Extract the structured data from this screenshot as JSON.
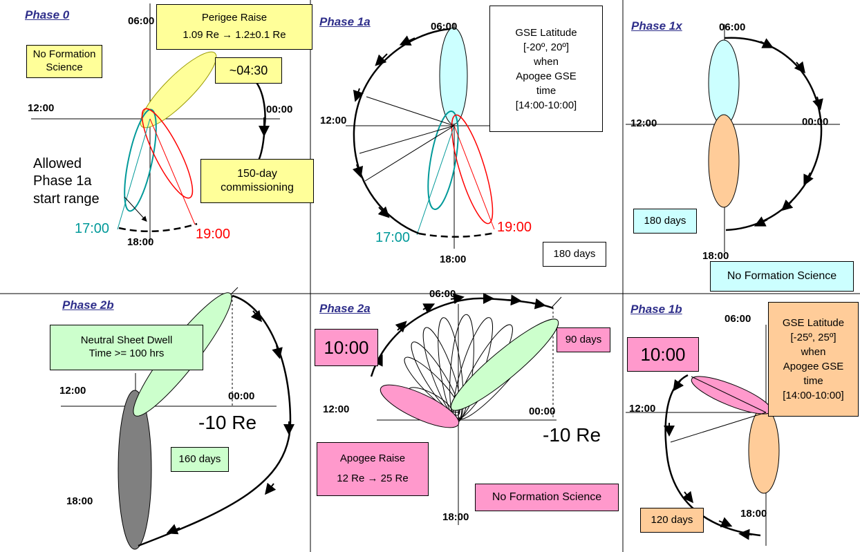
{
  "colors": {
    "teal": "#009999",
    "red": "#ff0000",
    "yellow": "#ffff99",
    "cyan": "#ccffff",
    "pink": "#ff99cc",
    "green": "#ccffcc",
    "orange": "#ffcc99",
    "gray": "#808080",
    "phase_title": "#2e2e8a"
  },
  "p0": {
    "title": "Phase 0",
    "t0600": "06:00",
    "t1200": "12:00",
    "t0000": "00:00",
    "t1800": "18:00",
    "perigee_line1": "Perigee Raise",
    "perigee_line2": "1.09 Re → 1.2±0.1 Re",
    "noform_line1": "No Formation",
    "noform_line2": "Science",
    "approx": "~04:30",
    "allowed_line1": "Allowed",
    "allowed_line2": "Phase 1a",
    "allowed_line3": "start range",
    "commission_line1": "150-day",
    "commission_line2": "commissioning",
    "t1700": "17:00",
    "t1900": "19:00"
  },
  "p1a": {
    "title": "Phase 1a",
    "t0600": "06:00",
    "t1200": "12:00",
    "t1800": "18:00",
    "gse_line1": "GSE Latitude",
    "gse_line2": "[-20º, 20º]",
    "gse_line3": "when",
    "gse_line4": "Apogee GSE",
    "gse_line5": "time",
    "gse_line6": "[14:00-10:00]",
    "t1700": "17:00",
    "t1900": "19:00",
    "days": "180 days"
  },
  "p1x": {
    "title": "Phase 1x",
    "t0600": "06:00",
    "t1200": "12:00",
    "t0000": "00:00",
    "t1800": "18:00",
    "days": "180 days",
    "noform": "No Formation Science"
  },
  "p2b": {
    "title": "Phase 2b",
    "neutral_line1": "Neutral Sheet Dwell",
    "neutral_line2": "Time >= 100 hrs",
    "t1200": "12:00",
    "t0000": "00:00",
    "t1800": "18:00",
    "re": "-10 Re",
    "days": "160 days"
  },
  "p2a": {
    "title": "Phase 2a",
    "t0600": "06:00",
    "t1200": "12:00",
    "t0000": "00:00",
    "t1800": "18:00",
    "time": "10:00",
    "days": "90 days",
    "re": "-10 Re",
    "apogee_line1": "Apogee Raise",
    "apogee_line2": "12 Re → 25 Re",
    "noform": "No Formation Science"
  },
  "p1b": {
    "title": "Phase 1b",
    "t0600": "06:00",
    "t1200": "12:00",
    "t1800": "18:00",
    "time": "10:00",
    "gse_line1": "GSE Latitude",
    "gse_line2": "[-25º, 25º]",
    "gse_line3": "when",
    "gse_line4": "Apogee GSE",
    "gse_line5": "time",
    "gse_line6": "[14:00-10:00]",
    "days": "120 days"
  }
}
